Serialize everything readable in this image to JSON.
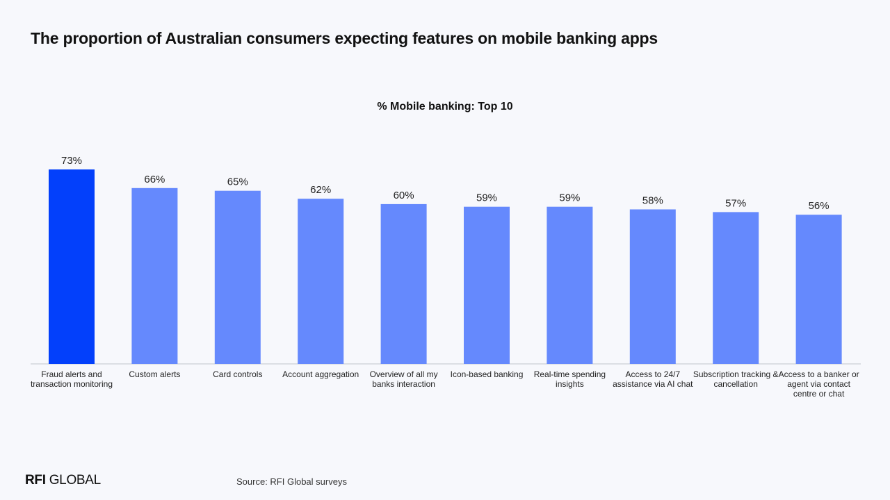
{
  "page": {
    "title": "The proportion of Australian consumers expecting features on mobile banking apps",
    "source": "Source: RFI Global surveys",
    "logo": {
      "bold_part": "RFI",
      "light_part": "GLOBAL"
    }
  },
  "colors": {
    "highlight_bar": "#0340fb",
    "standard_bar": "#6589fd",
    "axis_line": "#bfc3cc",
    "background": "#f7f8fc"
  },
  "chart_data": {
    "type": "bar",
    "title": "% Mobile banking: Top 10",
    "xlabel": "",
    "ylabel": "",
    "ylim": [
      0,
      73
    ],
    "grid": false,
    "highlight_index": 0,
    "categories": [
      "Fraud alerts and transaction monitoring",
      "Custom alerts",
      "Card controls",
      "Account aggregation",
      "Overview of all my banks interaction",
      "Icon-based banking",
      "Real-time spending insights",
      "Access to 24/7 assistance via AI chat",
      "Subscription tracking & cancellation",
      "Access to a banker or agent via contact centre or chat"
    ],
    "values": [
      73,
      66,
      65,
      62,
      60,
      59,
      59,
      58,
      57,
      56
    ],
    "value_labels": [
      "73%",
      "66%",
      "65%",
      "62%",
      "60%",
      "59%",
      "59%",
      "58%",
      "57%",
      "56%"
    ]
  }
}
